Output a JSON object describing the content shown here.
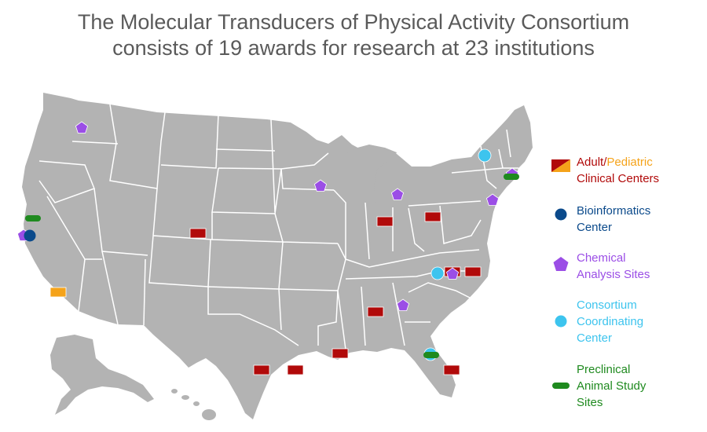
{
  "title": {
    "line1": "The Molecular Transducers of Physical Activity Consortium",
    "line2": "consists of 19 awards for research at 23 institutions"
  },
  "colors": {
    "map_fill": "#b3b3b3",
    "state_border": "#ffffff",
    "adult_clinical": "#b10a0a",
    "pediatric_clinical": "#f5a31a",
    "bioinformatics": "#0b4a8b",
    "chemical_analysis": "#9b4ee6",
    "coordinating": "#3dc4ee",
    "preclinical": "#1f8a1f"
  },
  "legend": {
    "clinical": {
      "marker": "split-rectangle-icon",
      "adult_label": "Adult",
      "separator": "/",
      "pediatric_label": "Pediatric",
      "line2": "Clinical Centers"
    },
    "bioinformatics": {
      "marker": "circle-icon",
      "line1": "Bioinformatics",
      "line2": "Center"
    },
    "chemical": {
      "marker": "pentagon-icon",
      "line1": "Chemical",
      "line2": "Analysis Sites"
    },
    "coordinating": {
      "marker": "circle-icon",
      "line1": "Consortium",
      "line2": "Coordinating",
      "line3": "Center"
    },
    "preclinical": {
      "marker": "pill-icon",
      "line1": "Preclinical",
      "line2": "Animal Study",
      "line3": "Sites"
    }
  }
}
